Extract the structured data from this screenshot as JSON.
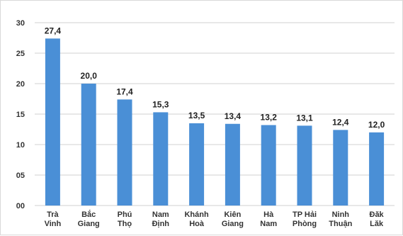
{
  "chart_data": {
    "type": "bar",
    "title": "",
    "xlabel": "",
    "ylabel": "",
    "categories": [
      [
        "Trà",
        "Vinh"
      ],
      [
        "Bắc",
        "Giang"
      ],
      [
        "Phú",
        "Thọ"
      ],
      [
        "Nam",
        "Định"
      ],
      [
        "Khánh",
        "Hoà"
      ],
      [
        "Kiên",
        "Giang"
      ],
      [
        "Hà",
        "Nam"
      ],
      [
        "TP Hải",
        "Phòng"
      ],
      [
        "Ninh",
        "Thuận"
      ],
      [
        "Đăk",
        "Lăk"
      ]
    ],
    "values": [
      27.4,
      20.0,
      17.4,
      15.3,
      13.5,
      13.4,
      13.2,
      13.1,
      12.4,
      12.0
    ],
    "value_labels": [
      "27,4",
      "20,0",
      "17,4",
      "15,3",
      "13,5",
      "13,4",
      "13,2",
      "13,1",
      "12,4",
      "12,0"
    ],
    "yticks": [
      0,
      5,
      10,
      15,
      20,
      25,
      30
    ],
    "ytick_labels": [
      "00",
      "05",
      "10",
      "15",
      "20",
      "25",
      "30"
    ],
    "ylim": [
      0,
      30
    ],
    "grid": true,
    "legend": "none",
    "bar_color": "#4a8fd6",
    "grid_color": "#d0d0d0"
  }
}
